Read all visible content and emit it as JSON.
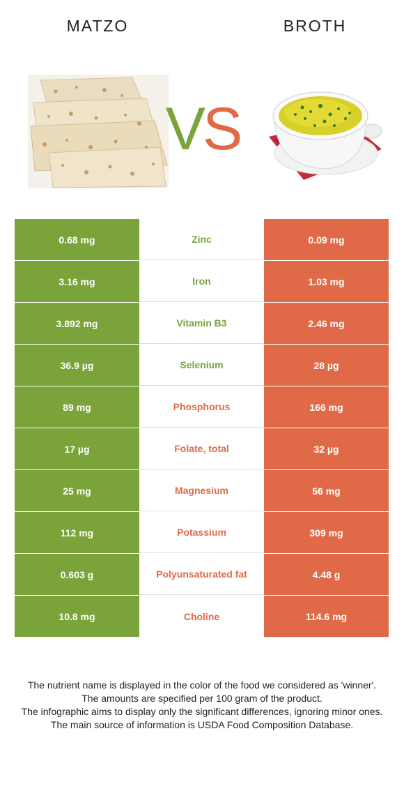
{
  "header": {
    "left_food": "MATZO",
    "right_food": "BROTH",
    "vs_v": "V",
    "vs_s": "S"
  },
  "colors": {
    "matzo": "#7aa33a",
    "broth": "#e06a48"
  },
  "rows": [
    {
      "left": "0.68 mg",
      "nutrient": "Zinc",
      "right": "0.09 mg",
      "winner": "matzo"
    },
    {
      "left": "3.16 mg",
      "nutrient": "Iron",
      "right": "1.03 mg",
      "winner": "matzo"
    },
    {
      "left": "3.892 mg",
      "nutrient": "Vitamin B3",
      "right": "2.46 mg",
      "winner": "matzo"
    },
    {
      "left": "36.9 µg",
      "nutrient": "Selenium",
      "right": "28 µg",
      "winner": "matzo"
    },
    {
      "left": "89 mg",
      "nutrient": "Phosphorus",
      "right": "166 mg",
      "winner": "broth"
    },
    {
      "left": "17 µg",
      "nutrient": "Folate, total",
      "right": "32 µg",
      "winner": "broth"
    },
    {
      "left": "25 mg",
      "nutrient": "Magnesium",
      "right": "56 mg",
      "winner": "broth"
    },
    {
      "left": "112 mg",
      "nutrient": "Potassium",
      "right": "309 mg",
      "winner": "broth"
    },
    {
      "left": "0.603 g",
      "nutrient": "Polyunsaturated fat",
      "right": "4.48 g",
      "winner": "broth"
    },
    {
      "left": "10.8 mg",
      "nutrient": "Choline",
      "right": "114.6 mg",
      "winner": "broth"
    }
  ],
  "footer": {
    "line1": "The nutrient name is displayed in the color of the food we considered as 'winner'.",
    "line2": "The amounts are specified per 100 gram of the product.",
    "line3": "The infographic aims to display only the significant differences, ignoring minor ones.",
    "line4": "The main source of information is USDA Food Composition Database."
  }
}
